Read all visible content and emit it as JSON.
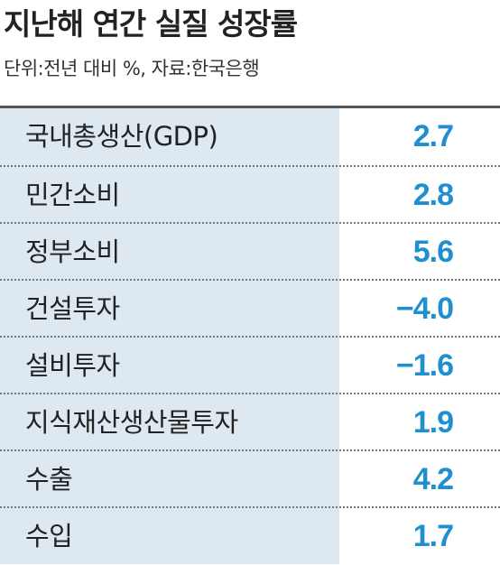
{
  "header": {
    "title": "지난해 연간 실질 성장률",
    "subtitle": "단위:전년 대비 %, 자료:한국은행"
  },
  "table": {
    "rows": [
      [
        "국내총생산(GDP)",
        "2.7"
      ],
      [
        "민간소비",
        "2.8"
      ],
      [
        "정부소비",
        "5.6"
      ],
      [
        "건설투자",
        "−4.0"
      ],
      [
        "설비투자",
        "−1.6"
      ],
      [
        "지식재산생산물투자",
        "1.9"
      ],
      [
        "수출",
        "4.2"
      ],
      [
        "수입",
        "1.7"
      ]
    ]
  }
}
